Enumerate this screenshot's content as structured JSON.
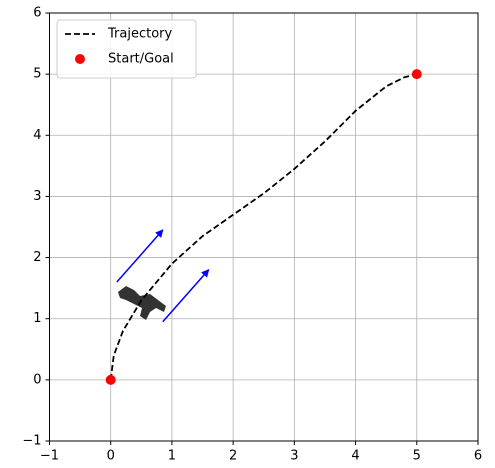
{
  "chart_data": {
    "type": "line",
    "series": [
      {
        "name": "Trajectory",
        "color": "#000000",
        "dashed": true,
        "x": [
          0,
          0.05,
          0.2,
          0.5,
          1,
          1.5,
          2,
          2.5,
          3,
          3.5,
          4,
          4.5,
          4.8,
          5
        ],
        "values": [
          0,
          0.4,
          0.8,
          1.3,
          1.9,
          2.35,
          2.7,
          3.05,
          3.45,
          3.9,
          4.4,
          4.8,
          4.95,
          5
        ]
      },
      {
        "name": "Start/Goal",
        "color": "#ff0000",
        "type": "scatter",
        "x": [
          0,
          5
        ],
        "values": [
          0,
          5
        ]
      }
    ],
    "arrows": [
      {
        "x": 0.1,
        "y": 1.6,
        "dx": 0.75,
        "dy": 0.85
      },
      {
        "x": 0.85,
        "y": 0.95,
        "dx": 0.75,
        "dy": 0.85
      }
    ],
    "arrow_color": "#0000ff",
    "xlim": [
      -1,
      6
    ],
    "ylim": [
      -1,
      6
    ],
    "xticks": [
      {
        "value": -1,
        "label": "−1"
      },
      0,
      1,
      2,
      3,
      4,
      5,
      6
    ],
    "yticks": [
      {
        "value": -1,
        "label": "−1"
      },
      0,
      1,
      2,
      3,
      4,
      5,
      6
    ],
    "grid": true,
    "legend": "upper left"
  }
}
